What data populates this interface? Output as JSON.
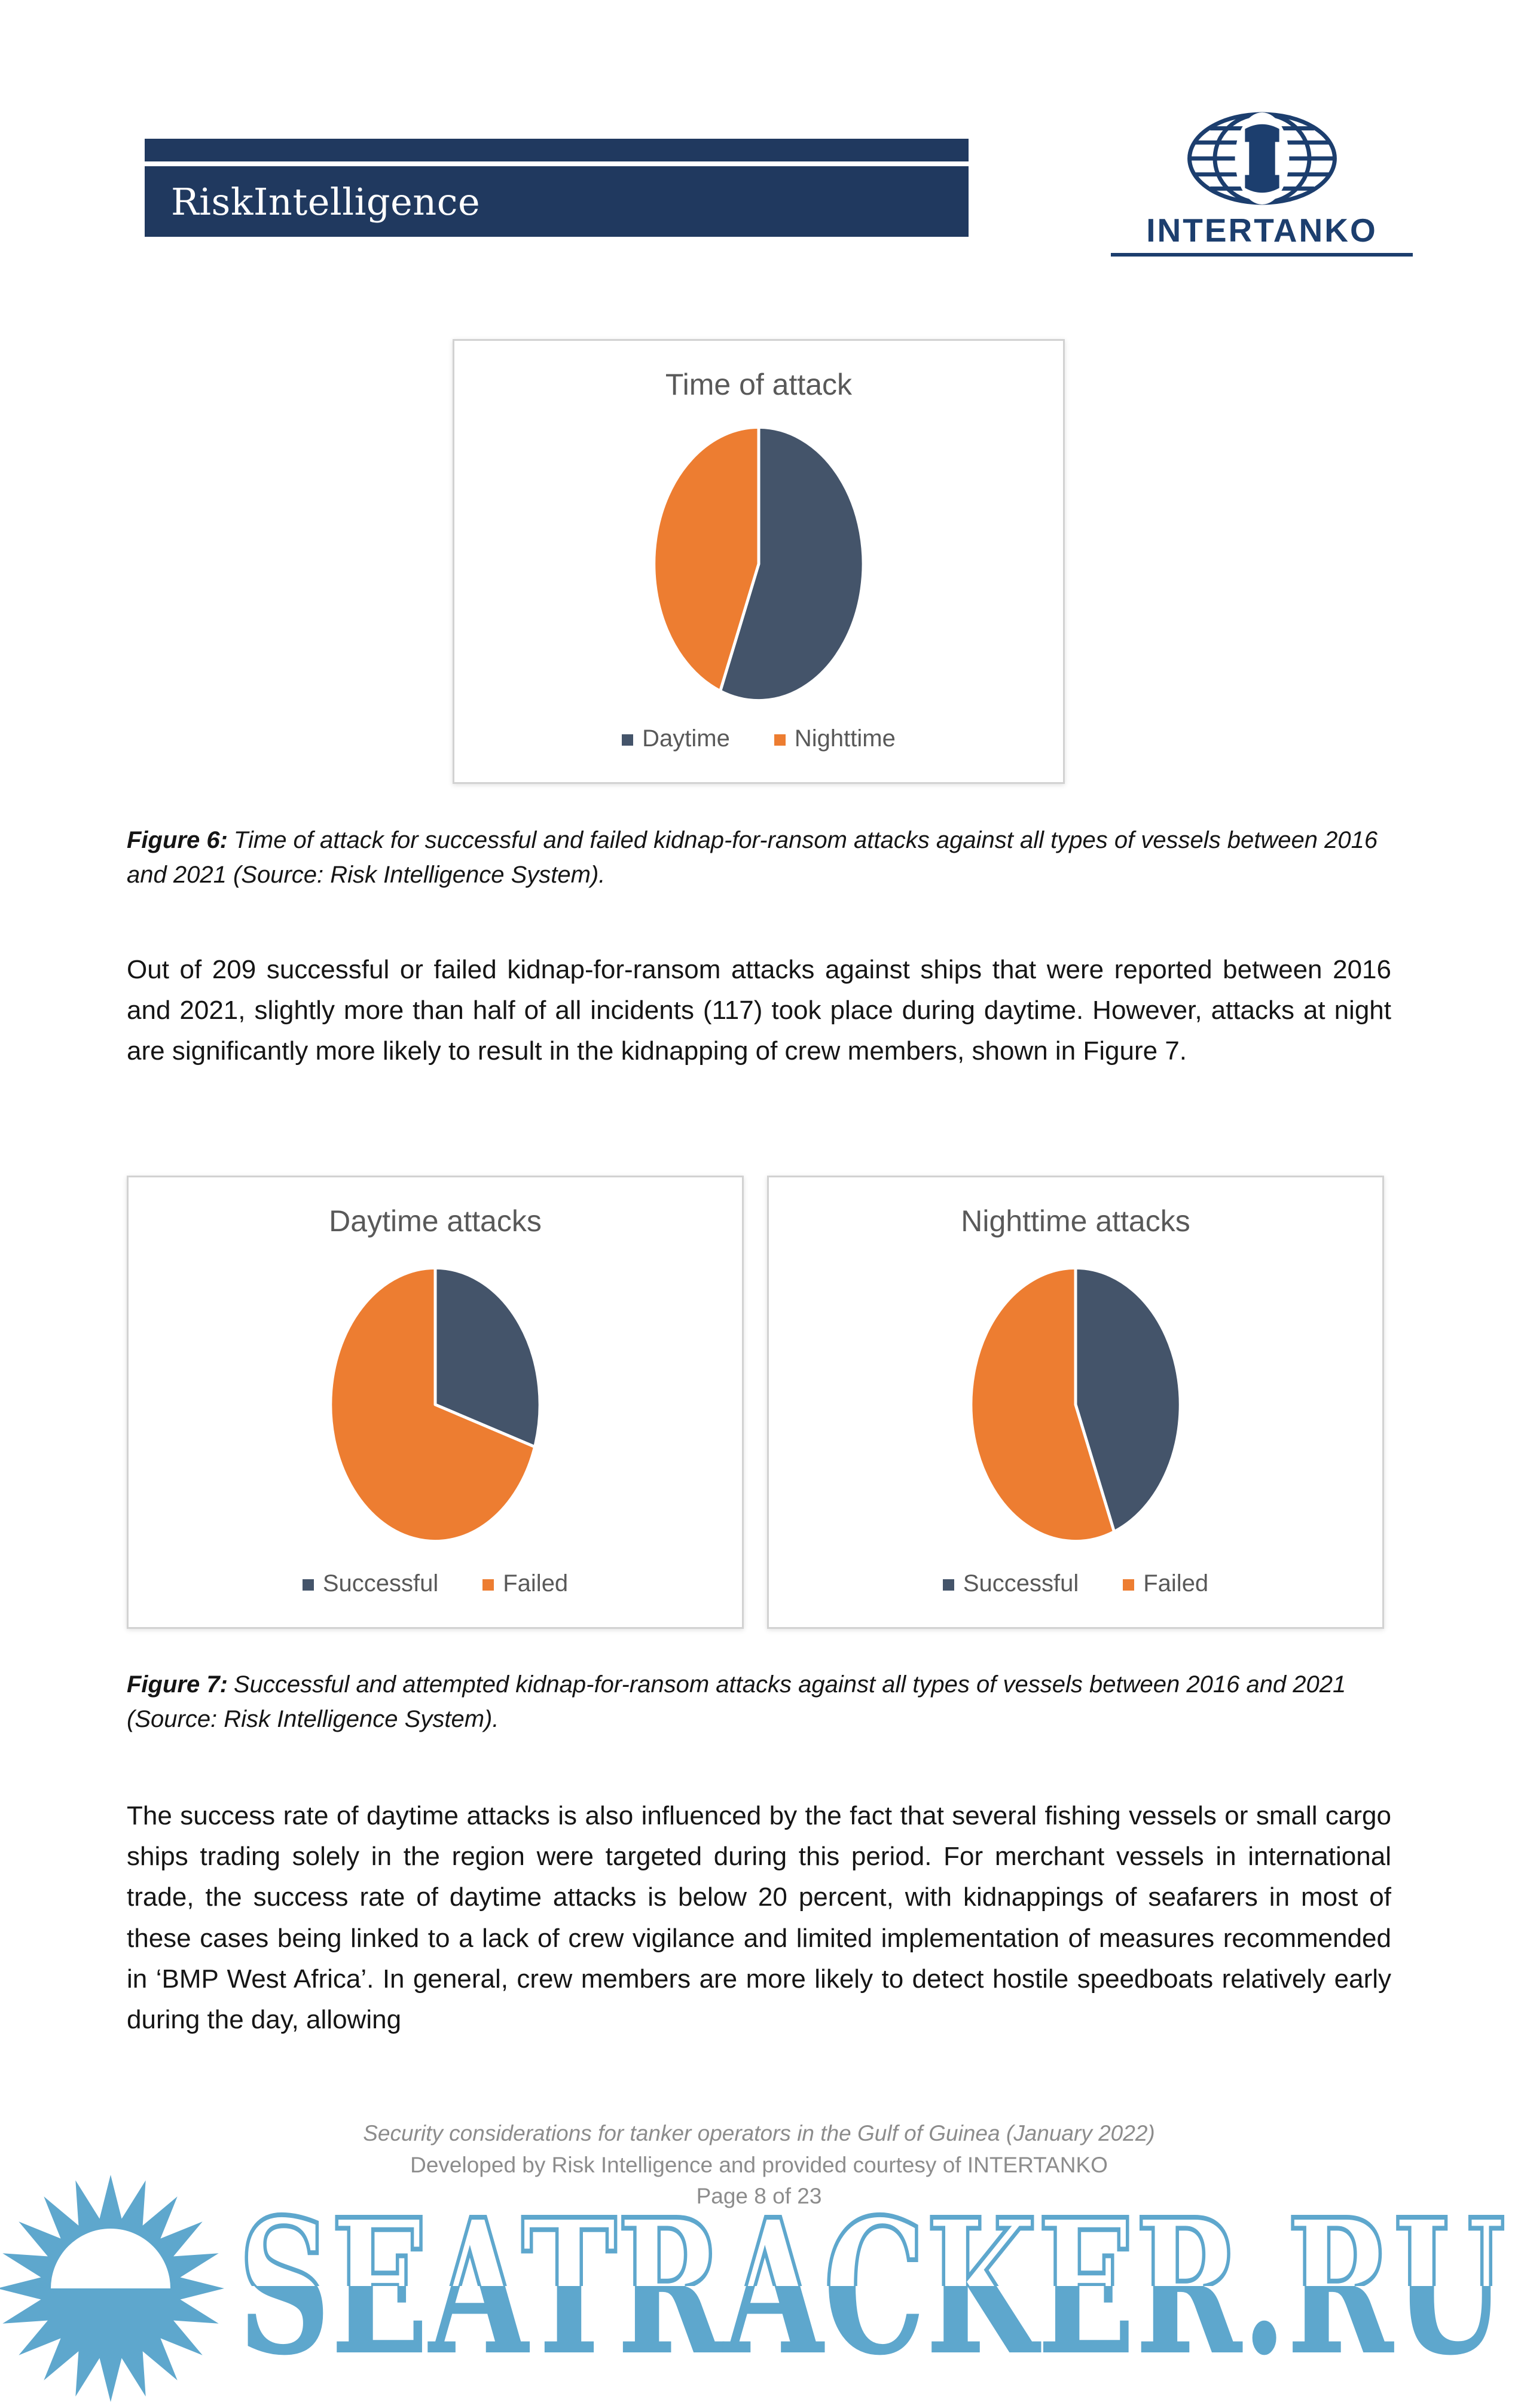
{
  "header": {
    "risk_intelligence_logo": "RiskIntelligence",
    "intertanko_logo": "INTERTANKO"
  },
  "figure6_caption": {
    "label": "Figure 6:",
    "text": "Time of attack for successful and failed kidnap-for-ransom attacks against all types of vessels between 2016 and 2021 (Source: Risk Intelligence System)."
  },
  "paragraph1": "Out of 209 successful or failed kidnap-for-ransom attacks against ships that were reported between 2016 and 2021, slightly more than half of all incidents (117) took place during daytime. However, attacks at night are significantly more likely to result in the kidnapping of crew members, shown in Figure 7.",
  "figure7_caption": {
    "label": "Figure 7:",
    "text": "Successful and attempted kidnap-for-ransom attacks against all types of vessels between 2016 and 2021 (Source: Risk Intelligence System)."
  },
  "paragraph2": "The success rate of daytime attacks is also influenced by the fact that several fishing vessels or small cargo ships trading solely in the region were targeted during this period. For merchant vessels in international trade, the success rate of daytime attacks is below 20 percent, with kidnappings of seafarers in most of these cases being linked to a lack of crew vigilance and limited implementation of measures recommended in ‘BMP West Africa’. In general, crew members are more likely to detect hostile speedboats relatively early during the day, allowing",
  "footer": {
    "line1": "Security considerations for tanker operators in the Gulf of Guinea (January 2022)",
    "line2": "Developed by Risk Intelligence and provided courtesy of INTERTANKO",
    "line3": "Page 8 of 23"
  },
  "watermark": {
    "text": "SEATRACKER.RU",
    "color": "#5EA7CD",
    "icon": "sun-over-water-icon"
  },
  "chart_data": [
    {
      "type": "pie",
      "title": "Time of attack",
      "labels": [
        "Daytime",
        "Nighttime"
      ],
      "values": [
        117,
        92
      ],
      "percentages": [
        56,
        44
      ],
      "colors": [
        "#44546A",
        "#ED7D31"
      ],
      "legend_position": "bottom",
      "start_angle_deg": 0,
      "direction": "clockwise"
    },
    {
      "type": "pie",
      "title": "Daytime attacks",
      "labels": [
        "Successful",
        "Failed"
      ],
      "values": [
        30,
        70
      ],
      "values_unit": "percent (estimated from pie)",
      "colors": [
        "#44546A",
        "#ED7D31"
      ],
      "legend_position": "bottom",
      "start_angle_deg": 0,
      "direction": "clockwise"
    },
    {
      "type": "pie",
      "title": "Nighttime attacks",
      "labels": [
        "Successful",
        "Failed"
      ],
      "values": [
        44,
        56
      ],
      "values_unit": "percent (estimated from pie)",
      "colors": [
        "#44546A",
        "#ED7D31"
      ],
      "legend_position": "bottom",
      "start_angle_deg": 0,
      "direction": "clockwise"
    }
  ]
}
